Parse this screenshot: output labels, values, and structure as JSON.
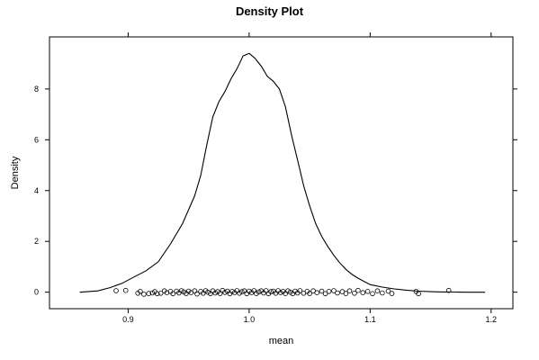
{
  "chart_data": {
    "type": "line",
    "title": "Density Plot",
    "xlabel": "mean",
    "ylabel": "Density",
    "xlim": [
      0.835,
      1.218
    ],
    "ylim": [
      -0.65,
      10.05
    ],
    "x_ticks": [
      0.9,
      1.0,
      1.1,
      1.2
    ],
    "x_tick_labels": [
      "0.9",
      "1.0",
      "1.1",
      "1.2"
    ],
    "y_ticks": [
      0,
      2,
      4,
      6,
      8
    ],
    "y_tick_labels": [
      "0",
      "2",
      "4",
      "6",
      "8"
    ],
    "grid": false,
    "series": [
      {
        "style": "line",
        "x": [
          0.86,
          0.875,
          0.885,
          0.895,
          0.905,
          0.915,
          0.925,
          0.935,
          0.945,
          0.955,
          0.96,
          0.965,
          0.97,
          0.975,
          0.98,
          0.985,
          0.99,
          0.995,
          1.0,
          1.005,
          1.01,
          1.015,
          1.02,
          1.025,
          1.03,
          1.035,
          1.04,
          1.045,
          1.05,
          1.055,
          1.06,
          1.065,
          1.07,
          1.075,
          1.08,
          1.085,
          1.09,
          1.1,
          1.11,
          1.12,
          1.13,
          1.14,
          1.15,
          1.16,
          1.17,
          1.18,
          1.195
        ],
        "y": [
          0.0,
          0.05,
          0.18,
          0.35,
          0.6,
          0.85,
          1.2,
          1.9,
          2.7,
          3.8,
          4.6,
          5.8,
          6.9,
          7.5,
          7.9,
          8.4,
          8.8,
          9.3,
          9.4,
          9.2,
          8.9,
          8.5,
          8.3,
          8.0,
          7.3,
          6.2,
          5.2,
          4.2,
          3.4,
          2.7,
          2.2,
          1.8,
          1.45,
          1.15,
          0.9,
          0.7,
          0.55,
          0.3,
          0.2,
          0.13,
          0.08,
          0.04,
          0.02,
          0.01,
          0.005,
          0.0,
          0.0
        ]
      },
      {
        "style": "points",
        "x": [
          0.89,
          0.898,
          0.908,
          0.91,
          0.913,
          0.917,
          0.92,
          0.922,
          0.924,
          0.927,
          0.93,
          0.932,
          0.935,
          0.937,
          0.94,
          0.942,
          0.944,
          0.946,
          0.948,
          0.95,
          0.952,
          0.955,
          0.957,
          0.96,
          0.962,
          0.964,
          0.966,
          0.968,
          0.97,
          0.972,
          0.974,
          0.976,
          0.978,
          0.98,
          0.982,
          0.984,
          0.986,
          0.988,
          0.99,
          0.992,
          0.994,
          0.996,
          0.998,
          1.0,
          1.002,
          1.004,
          1.006,
          1.008,
          1.01,
          1.012,
          1.014,
          1.016,
          1.018,
          1.02,
          1.022,
          1.024,
          1.026,
          1.028,
          1.03,
          1.032,
          1.034,
          1.036,
          1.038,
          1.04,
          1.042,
          1.045,
          1.048,
          1.05,
          1.053,
          1.056,
          1.06,
          1.063,
          1.066,
          1.07,
          1.073,
          1.077,
          1.08,
          1.083,
          1.087,
          1.09,
          1.094,
          1.098,
          1.102,
          1.106,
          1.11,
          1.115,
          1.118,
          1.138,
          1.14,
          1.165
        ],
        "y": [
          0.06,
          0.07,
          -0.04,
          0.03,
          -0.08,
          -0.05,
          -0.03,
          0.02,
          -0.06,
          -0.04,
          0.05,
          -0.02,
          0.03,
          -0.06,
          0.04,
          -0.03,
          0.06,
          0.01,
          -0.05,
          0.04,
          -0.02,
          0.05,
          -0.07,
          0.03,
          -0.04,
          0.06,
          0.0,
          -0.06,
          0.05,
          -0.03,
          0.02,
          -0.05,
          0.07,
          -0.01,
          0.04,
          -0.06,
          0.03,
          -0.02,
          0.06,
          -0.04,
          0.02,
          0.05,
          -0.06,
          0.04,
          -0.02,
          0.06,
          -0.05,
          0.01,
          0.05,
          -0.03,
          0.06,
          -0.06,
          0.02,
          0.04,
          -0.04,
          0.06,
          -0.02,
          0.03,
          -0.05,
          0.05,
          0.0,
          -0.06,
          0.04,
          -0.03,
          0.06,
          -0.04,
          0.03,
          -0.05,
          0.05,
          -0.02,
          0.04,
          -0.06,
          0.03,
          0.06,
          -0.03,
          0.02,
          -0.05,
          0.05,
          -0.04,
          0.07,
          -0.02,
          0.03,
          -0.06,
          0.05,
          -0.03,
          0.04,
          -0.05,
          0.03,
          -0.06,
          0.07
        ]
      }
    ]
  }
}
